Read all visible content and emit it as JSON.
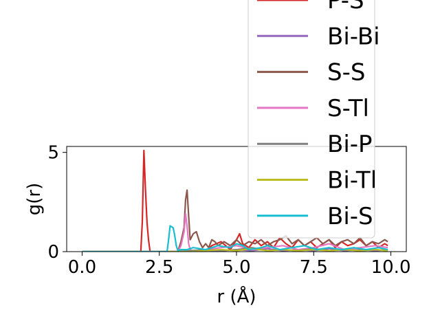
{
  "chart_data": {
    "type": "line",
    "xlabel": "r (Å)",
    "ylabel": "g(r)",
    "xlim": [
      -0.5,
      10.5
    ],
    "ylim": [
      0,
      5.3
    ],
    "xticks": [
      "0.0",
      "2.5",
      "5.0",
      "7.5",
      "10.0"
    ],
    "yticks": [
      "0",
      "5"
    ],
    "grid": false,
    "legend_position": "upper-right",
    "series": [
      {
        "name": "P-S",
        "color": "#d62728",
        "x": [
          0,
          1.9,
          1.95,
          2.0,
          2.05,
          2.1,
          2.15,
          2.2,
          4.0,
          4.2,
          4.5,
          4.8,
          5.0,
          5.1,
          5.2,
          5.4,
          5.6,
          5.8,
          6.0,
          6.2,
          6.4,
          6.6,
          6.8,
          7.0,
          7.2,
          7.4,
          7.6,
          7.8,
          8.0,
          8.2,
          8.4,
          8.6,
          8.8,
          9.0,
          9.2,
          9.4,
          9.6,
          9.8,
          9.9
        ],
        "y": [
          0,
          0,
          1.5,
          5.1,
          3.2,
          1.5,
          0.6,
          0,
          0,
          0.3,
          0.5,
          0.1,
          0.6,
          0.9,
          0.4,
          0.2,
          0.6,
          0.3,
          0.5,
          0.2,
          0.7,
          0.4,
          0.2,
          0.6,
          0.3,
          0.5,
          0.2,
          0.4,
          0.6,
          0.2,
          0.5,
          0.3,
          0.4,
          0.6,
          0.3,
          0.5,
          0.2,
          0.4,
          0.3
        ]
      },
      {
        "name": "Bi-Bi",
        "color": "#9467bd",
        "x": [
          0,
          4.0,
          4.5,
          5.0,
          5.5,
          6.0,
          6.5,
          7.0,
          7.5,
          8.0,
          8.5,
          9.0,
          9.5,
          9.9
        ],
        "y": [
          0,
          0,
          0.05,
          0.1,
          0.05,
          0.15,
          0.05,
          0.1,
          0.05,
          0.15,
          0.05,
          0.1,
          0.05,
          0.1
        ]
      },
      {
        "name": "S-S",
        "color": "#8c564b",
        "x": [
          0,
          3.1,
          3.2,
          3.3,
          3.35,
          3.4,
          3.45,
          3.5,
          3.6,
          3.7,
          3.8,
          3.9,
          4.0,
          4.1,
          4.2,
          4.3,
          4.4,
          4.6,
          4.8,
          5.0,
          5.2,
          5.4,
          5.6,
          5.8,
          6.0,
          6.2,
          6.4,
          6.6,
          6.8,
          7.0,
          7.2,
          7.4,
          7.6,
          7.8,
          8.0,
          8.2,
          8.4,
          8.6,
          8.8,
          9.0,
          9.2,
          9.4,
          9.6,
          9.8,
          9.9
        ],
        "y": [
          0,
          0,
          0.5,
          1.2,
          2.6,
          3.1,
          1.8,
          0.6,
          0.9,
          1.0,
          0.5,
          0.2,
          0.4,
          0.2,
          0.6,
          0.5,
          0.3,
          0.5,
          0.3,
          0.6,
          0.3,
          0.5,
          0.4,
          0.6,
          0.3,
          0.5,
          0.6,
          0.8,
          0.4,
          0.6,
          0.3,
          0.5,
          0.7,
          0.4,
          0.6,
          0.3,
          0.5,
          0.6,
          0.4,
          0.7,
          0.3,
          0.5,
          0.4,
          0.6,
          0.5
        ]
      },
      {
        "name": "S-Tl",
        "color": "#e377c2",
        "x": [
          0,
          3.1,
          3.2,
          3.3,
          3.35,
          3.4,
          3.45,
          3.5,
          3.6,
          4.0,
          4.5,
          5.0,
          5.5,
          6.0,
          6.5,
          7.0,
          7.5,
          8.0,
          8.5,
          9.0,
          9.5,
          9.9
        ],
        "y": [
          0,
          0,
          0.3,
          1.0,
          1.9,
          1.3,
          0.4,
          0.1,
          0,
          0.1,
          0.2,
          0.3,
          0.1,
          0.2,
          0.3,
          0.1,
          0.2,
          0.4,
          0.1,
          0.2,
          0.3,
          0.2
        ]
      },
      {
        "name": "Bi-P",
        "color": "#7f7f7f",
        "x": [
          0,
          3.0,
          3.5,
          4.0,
          4.5,
          5.0,
          5.5,
          6.0,
          6.5,
          7.0,
          7.5,
          8.0,
          8.5,
          9.0,
          9.5,
          9.9
        ],
        "y": [
          0,
          0,
          0.05,
          0.1,
          0.05,
          0.1,
          0.2,
          0.05,
          0.1,
          0.05,
          0.15,
          0.05,
          0.1,
          0.05,
          0.1,
          0.05
        ]
      },
      {
        "name": "Bi-Tl",
        "color": "#bcbd22",
        "x": [
          0,
          3.5,
          4.0,
          4.5,
          5.0,
          5.5,
          6.0,
          6.5,
          7.0,
          7.5,
          8.0,
          8.5,
          9.0,
          9.5,
          9.9
        ],
        "y": [
          0,
          0,
          0.05,
          0.1,
          0.05,
          0.15,
          0.05,
          0.1,
          0.05,
          0.1,
          0.05,
          0.1,
          0.05,
          0.1,
          0.05
        ]
      },
      {
        "name": "Bi-S",
        "color": "#17becf",
        "x": [
          0,
          2.75,
          2.8,
          2.85,
          2.9,
          2.95,
          3.0,
          3.05,
          3.1,
          3.2,
          3.4,
          3.6,
          4.0,
          4.4,
          4.8,
          5.0,
          5.2,
          5.4,
          5.8,
          6.0,
          6.4,
          6.8,
          7.2,
          7.6,
          8.0,
          8.4,
          8.8,
          9.2,
          9.6,
          9.9
        ],
        "y": [
          0,
          0,
          0.6,
          1.3,
          1.25,
          1.2,
          0.8,
          0.3,
          0.05,
          0.1,
          0.1,
          0.2,
          0.1,
          0.3,
          0.2,
          0.4,
          0.3,
          0.1,
          0.2,
          0.3,
          0.1,
          0.2,
          0.3,
          0.1,
          0.2,
          0.1,
          0.2,
          0.1,
          0.2,
          0.1
        ]
      }
    ]
  }
}
